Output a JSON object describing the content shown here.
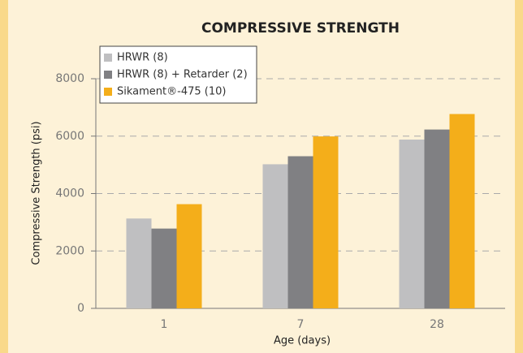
{
  "chart_data": {
    "type": "bar",
    "title": "COMPRESSIVE STRENGTH",
    "x_label": "Age (days)",
    "y_label": "Compressive Strength  (psi)",
    "categories": [
      "1",
      "7",
      "28"
    ],
    "series": [
      {
        "name": "HRWR (8)",
        "color": "#bfbfc1",
        "values": [
          3130,
          5020,
          5880
        ]
      },
      {
        "name": "HRWR (8) + Retarder (2)",
        "color": "#808083",
        "values": [
          2780,
          5300,
          6230
        ]
      },
      {
        "name": "Sikament®-475 (10)",
        "color": "#f4ae1a",
        "values": [
          3630,
          5990,
          6770
        ]
      }
    ],
    "ylim": [
      0,
      8000
    ],
    "yticks": [
      0,
      2000,
      4000,
      6000,
      8000
    ],
    "grid": true,
    "legend": "upper left"
  }
}
